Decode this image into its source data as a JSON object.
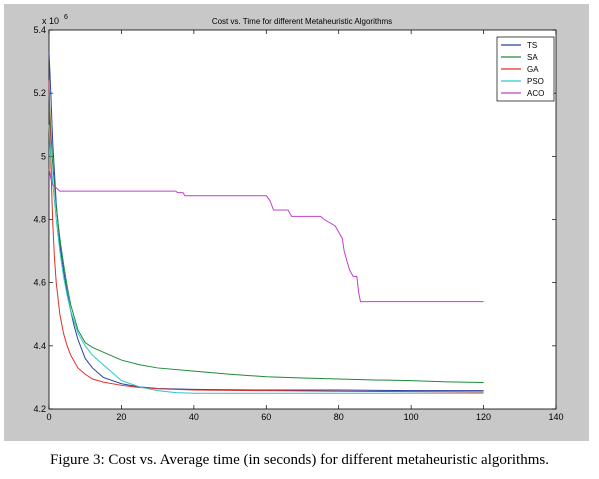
{
  "caption": "Figure 3: Cost vs. Average time (in seconds) for different metaheuristic algorithms.",
  "chart_data": {
    "type": "line",
    "title": "Cost vs. Time for different Metaheuristic Algorithms",
    "xlabel": "",
    "ylabel": "",
    "xlim": [
      0,
      140
    ],
    "ylim": [
      4.2,
      5.4
    ],
    "y_multiplier_label": "x 10",
    "y_multiplier_exponent": "6",
    "xticks": [
      0,
      20,
      40,
      60,
      80,
      100,
      120,
      140
    ],
    "yticks": [
      4.2,
      4.4,
      4.6,
      4.8,
      5,
      5.2,
      5.4
    ],
    "ytick_labels": [
      "4.2",
      "4.4",
      "4.6",
      "4.8",
      "5",
      "5.2",
      "5.4"
    ],
    "grid": false,
    "legend_position": "top-right",
    "series": [
      {
        "name": "TS",
        "color": "#2b3fa8",
        "x": [
          0,
          0.5,
          1,
          1.5,
          2,
          3,
          4,
          5,
          6,
          7,
          8,
          9,
          10,
          12,
          15,
          20,
          25,
          30,
          40,
          60,
          80,
          100,
          120
        ],
        "y": [
          5.33,
          5.2,
          5.05,
          4.95,
          4.85,
          4.72,
          4.64,
          4.57,
          4.51,
          4.46,
          4.42,
          4.39,
          4.36,
          4.33,
          4.3,
          4.28,
          4.27,
          4.265,
          4.262,
          4.26,
          4.26,
          4.258,
          4.258
        ]
      },
      {
        "name": "SA",
        "color": "#1f8a3a",
        "x": [
          0,
          0.5,
          1,
          2,
          3,
          4,
          5,
          6,
          8,
          10,
          12,
          15,
          20,
          25,
          30,
          40,
          50,
          60,
          70,
          80,
          90,
          100,
          110,
          120
        ],
        "y": [
          5.2,
          5.08,
          4.98,
          4.84,
          4.74,
          4.66,
          4.59,
          4.53,
          4.45,
          4.41,
          4.395,
          4.38,
          4.355,
          4.34,
          4.33,
          4.32,
          4.31,
          4.302,
          4.298,
          4.295,
          4.292,
          4.29,
          4.286,
          4.284
        ]
      },
      {
        "name": "GA",
        "color": "#e0302a",
        "x": [
          0,
          0.5,
          1,
          1.5,
          2,
          3,
          4,
          5,
          6,
          7,
          8,
          10,
          12,
          15,
          20,
          25,
          30,
          40,
          60,
          80,
          100,
          120
        ],
        "y": [
          5.24,
          4.98,
          4.8,
          4.68,
          4.6,
          4.5,
          4.44,
          4.4,
          4.37,
          4.35,
          4.33,
          4.31,
          4.295,
          4.285,
          4.275,
          4.268,
          4.264,
          4.26,
          4.258,
          4.256,
          4.255,
          4.254
        ]
      },
      {
        "name": "PSO",
        "color": "#2ec6c6",
        "x": [
          0,
          0.5,
          1,
          2,
          3,
          4,
          5,
          6,
          8,
          10,
          12,
          15,
          18,
          20,
          25,
          30,
          35,
          40,
          60,
          80,
          100,
          120
        ],
        "y": [
          5.1,
          5.0,
          4.92,
          4.8,
          4.7,
          4.62,
          4.56,
          4.51,
          4.44,
          4.4,
          4.37,
          4.34,
          4.31,
          4.29,
          4.27,
          4.258,
          4.252,
          4.25,
          4.25,
          4.25,
          4.25,
          4.25
        ]
      },
      {
        "name": "ACO",
        "color": "#c040c8",
        "x": [
          0,
          0.5,
          1,
          2,
          3,
          35,
          35.5,
          37,
          37.5,
          60,
          61,
          62,
          66,
          67,
          75,
          76,
          79,
          80,
          81,
          81.5,
          82,
          82.5,
          83,
          84,
          85,
          85.5,
          86,
          120
        ],
        "y": [
          4.96,
          4.93,
          4.91,
          4.9,
          4.89,
          4.89,
          4.885,
          4.885,
          4.875,
          4.875,
          4.86,
          4.83,
          4.83,
          4.81,
          4.81,
          4.8,
          4.78,
          4.76,
          4.74,
          4.7,
          4.68,
          4.66,
          4.64,
          4.62,
          4.62,
          4.57,
          4.54,
          4.54
        ]
      }
    ]
  }
}
